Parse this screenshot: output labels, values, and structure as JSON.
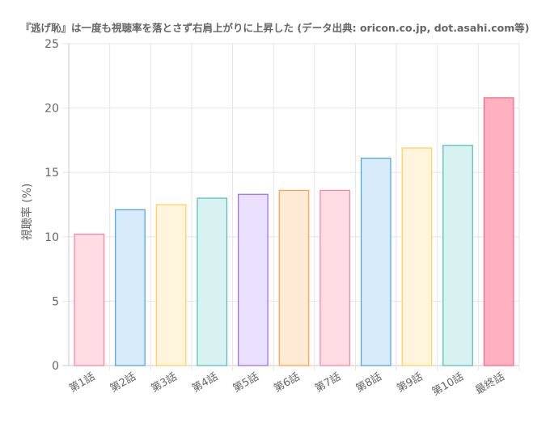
{
  "chart_data": {
    "type": "bar",
    "title": "『逃げ恥』は一度も視聴率を落とさず右肩上がりに上昇した (データ出典: oricon.co.jp, dot.asahi.com等)",
    "xlabel": "",
    "ylabel": "視聴率 (%)",
    "ylim": [
      0,
      25
    ],
    "yticks": [
      0,
      5,
      10,
      15,
      20,
      25
    ],
    "grid": true,
    "categories": [
      "第1話",
      "第2話",
      "第3話",
      "第4話",
      "第5話",
      "第6話",
      "第7話",
      "第8話",
      "第9話",
      "第10話",
      "最終話"
    ],
    "values": [
      10.2,
      12.1,
      12.5,
      13.0,
      13.3,
      13.6,
      13.6,
      16.1,
      16.9,
      17.1,
      20.8
    ],
    "colors": [
      {
        "fill": "#ffdde3",
        "stroke": "#ff7fa0"
      },
      {
        "fill": "#d7ebfa",
        "stroke": "#46a2e0"
      },
      {
        "fill": "#fff4dc",
        "stroke": "#ffce56"
      },
      {
        "fill": "#d8f2f2",
        "stroke": "#4bc0c0"
      },
      {
        "fill": "#ebe0ff",
        "stroke": "#9966ff"
      },
      {
        "fill": "#ffead6",
        "stroke": "#ff9f40"
      },
      {
        "fill": "#ffdde3",
        "stroke": "#ff7fa0"
      },
      {
        "fill": "#d7ebfa",
        "stroke": "#46a2e0"
      },
      {
        "fill": "#fff4dc",
        "stroke": "#ffce56"
      },
      {
        "fill": "#d8f2f2",
        "stroke": "#4bc0c0"
      },
      {
        "fill": "#ffb1c1",
        "stroke": "#ff6384"
      }
    ]
  }
}
